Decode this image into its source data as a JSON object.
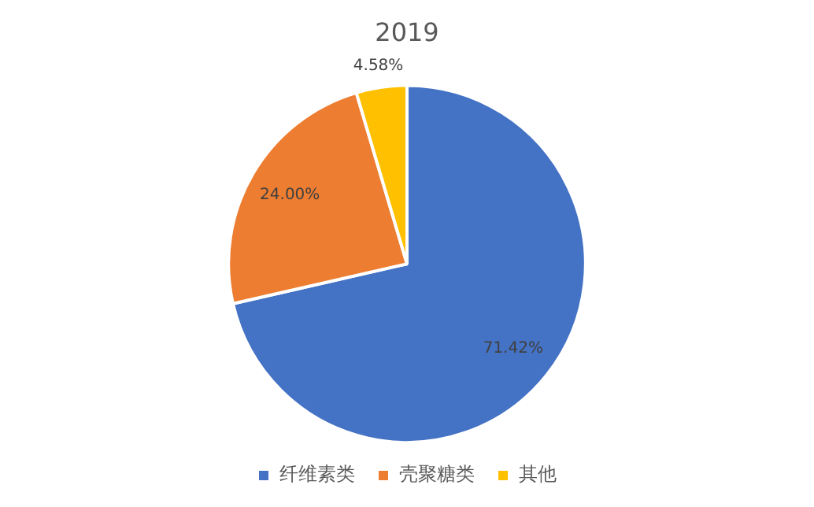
{
  "chart_data": {
    "type": "pie",
    "title": "2019",
    "categories": [
      "纤维素类",
      "壳聚糖类",
      "其他"
    ],
    "values": [
      71.42,
      24.0,
      4.58
    ],
    "colors": [
      "#4472c4",
      "#ed7d31",
      "#ffc000"
    ],
    "value_labels": [
      "71.42%",
      "24.00%",
      "4.58%"
    ],
    "legend": "bottom"
  }
}
